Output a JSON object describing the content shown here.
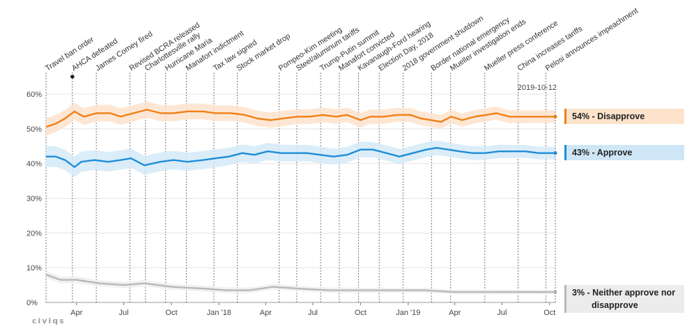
{
  "chart_data": {
    "type": "line",
    "y_unit": "%",
    "ylim": [
      0,
      60
    ],
    "y_ticks": [
      "0%",
      "10%",
      "20%",
      "30%",
      "40%",
      "50%",
      "60%"
    ],
    "x_range": [
      "2017-02-01",
      "2019-10-12"
    ],
    "x_ticks": [
      {
        "date": "2017-04-01",
        "label": "Apr"
      },
      {
        "date": "2017-07-01",
        "label": "Jul"
      },
      {
        "date": "2017-10-01",
        "label": "Oct"
      },
      {
        "date": "2018-01-01",
        "label": "Jan '18"
      },
      {
        "date": "2018-04-01",
        "label": "Apr"
      },
      {
        "date": "2018-07-01",
        "label": "Jul"
      },
      {
        "date": "2018-10-01",
        "label": "Oct"
      },
      {
        "date": "2019-01-01",
        "label": "Jan '19"
      },
      {
        "date": "2019-04-01",
        "label": "Apr"
      },
      {
        "date": "2019-07-01",
        "label": "Jul"
      },
      {
        "date": "2019-10-01",
        "label": "Oct"
      }
    ],
    "current_date_label": "2019-10-12",
    "events": [
      {
        "date": "2017-01-27",
        "label": "Travel ban order"
      },
      {
        "date": "2017-03-24",
        "label": "AHCA defeated"
      },
      {
        "date": "2017-05-09",
        "label": "James Comey fired"
      },
      {
        "date": "2017-07-13",
        "label": "Revised BCRA released"
      },
      {
        "date": "2017-08-12",
        "label": "Charlottesville rally"
      },
      {
        "date": "2017-09-20",
        "label": "Hurricane Maria"
      },
      {
        "date": "2017-10-30",
        "label": "Manafort indictment"
      },
      {
        "date": "2017-12-22",
        "label": "Tax law signed"
      },
      {
        "date": "2018-02-05",
        "label": "Stock market drop"
      },
      {
        "date": "2018-04-27",
        "label": "Pompeo-Kim meeting"
      },
      {
        "date": "2018-05-31",
        "label": "Steel/aluminum tariffs"
      },
      {
        "date": "2018-07-16",
        "label": "Trump-Putin summit"
      },
      {
        "date": "2018-08-21",
        "label": "Manafort convicted"
      },
      {
        "date": "2018-09-27",
        "label": "Kavanaugh-Ford hearing"
      },
      {
        "date": "2018-11-06",
        "label": "Election Day, 2018"
      },
      {
        "date": "2018-12-22",
        "label": "2018 government shutdown"
      },
      {
        "date": "2019-02-15",
        "label": "Border national emergency"
      },
      {
        "date": "2019-03-24",
        "label": "Mueller investigation ends"
      },
      {
        "date": "2019-05-29",
        "label": "Mueller press conference"
      },
      {
        "date": "2019-08-01",
        "label": "China increases tariffs"
      },
      {
        "date": "2019-09-24",
        "label": "Pelosi announces impeachment"
      }
    ],
    "series": [
      {
        "name": "Disapprove",
        "color": "#f07f16",
        "band_color": "#fde3cc",
        "band_halfwidth": [
          2.5,
          1.8
        ],
        "points": [
          [
            "2017-02-01",
            50.5
          ],
          [
            "2017-02-20",
            51.5
          ],
          [
            "2017-03-10",
            53
          ],
          [
            "2017-03-28",
            55
          ],
          [
            "2017-04-15",
            53.5
          ],
          [
            "2017-05-10",
            54.5
          ],
          [
            "2017-06-05",
            54.5
          ],
          [
            "2017-06-25",
            53.5
          ],
          [
            "2017-07-20",
            54.5
          ],
          [
            "2017-08-15",
            55.5
          ],
          [
            "2017-09-10",
            54.5
          ],
          [
            "2017-10-05",
            54.5
          ],
          [
            "2017-11-01",
            55
          ],
          [
            "2017-12-01",
            55
          ],
          [
            "2017-12-25",
            54.5
          ],
          [
            "2018-01-25",
            54.5
          ],
          [
            "2018-02-20",
            54
          ],
          [
            "2018-03-15",
            53
          ],
          [
            "2018-04-10",
            52.5
          ],
          [
            "2018-05-05",
            53
          ],
          [
            "2018-06-01",
            53.5
          ],
          [
            "2018-06-25",
            53.5
          ],
          [
            "2018-07-20",
            54
          ],
          [
            "2018-08-15",
            53.5
          ],
          [
            "2018-09-05",
            54
          ],
          [
            "2018-10-01",
            52.5
          ],
          [
            "2018-10-20",
            53.5
          ],
          [
            "2018-11-15",
            53.5
          ],
          [
            "2018-12-10",
            54
          ],
          [
            "2019-01-05",
            54
          ],
          [
            "2019-01-25",
            53
          ],
          [
            "2019-02-15",
            52.5
          ],
          [
            "2019-03-05",
            52
          ],
          [
            "2019-03-25",
            53.5
          ],
          [
            "2019-04-15",
            52.5
          ],
          [
            "2019-05-10",
            53.5
          ],
          [
            "2019-06-01",
            54
          ],
          [
            "2019-06-20",
            54.5
          ],
          [
            "2019-07-15",
            53.5
          ],
          [
            "2019-08-10",
            53.5
          ],
          [
            "2019-09-05",
            53.5
          ],
          [
            "2019-09-25",
            53.5
          ],
          [
            "2019-10-12",
            53.5
          ]
        ],
        "end_label": "54% - Disapprove"
      },
      {
        "name": "Approve",
        "color": "#1f8dd6",
        "band_color": "#d3eaf8",
        "band_halfwidth": [
          3.0,
          1.8
        ],
        "points": [
          [
            "2017-02-01",
            42
          ],
          [
            "2017-02-20",
            42
          ],
          [
            "2017-03-10",
            41
          ],
          [
            "2017-03-28",
            39
          ],
          [
            "2017-04-10",
            40.5
          ],
          [
            "2017-05-05",
            41
          ],
          [
            "2017-06-01",
            40.5
          ],
          [
            "2017-06-25",
            41
          ],
          [
            "2017-07-15",
            41.5
          ],
          [
            "2017-08-10",
            39.5
          ],
          [
            "2017-09-10",
            40.5
          ],
          [
            "2017-10-05",
            41
          ],
          [
            "2017-11-01",
            40.5
          ],
          [
            "2017-12-01",
            41
          ],
          [
            "2017-12-25",
            41.5
          ],
          [
            "2018-01-20",
            42
          ],
          [
            "2018-02-15",
            43
          ],
          [
            "2018-03-10",
            42.5
          ],
          [
            "2018-04-05",
            43.5
          ],
          [
            "2018-05-01",
            43
          ],
          [
            "2018-05-25",
            43
          ],
          [
            "2018-06-20",
            43
          ],
          [
            "2018-07-15",
            42.5
          ],
          [
            "2018-08-10",
            42
          ],
          [
            "2018-09-05",
            42.5
          ],
          [
            "2018-10-01",
            44
          ],
          [
            "2018-10-25",
            44
          ],
          [
            "2018-11-20",
            43
          ],
          [
            "2018-12-15",
            42
          ],
          [
            "2019-01-10",
            43
          ],
          [
            "2019-02-05",
            44
          ],
          [
            "2019-02-25",
            44.5
          ],
          [
            "2019-03-20",
            44
          ],
          [
            "2019-04-10",
            43.5
          ],
          [
            "2019-05-05",
            43
          ],
          [
            "2019-05-30",
            43
          ],
          [
            "2019-06-25",
            43.5
          ],
          [
            "2019-07-20",
            43.5
          ],
          [
            "2019-08-15",
            43.5
          ],
          [
            "2019-09-10",
            43
          ],
          [
            "2019-10-12",
            43
          ]
        ],
        "end_label": "43% - Approve"
      },
      {
        "name": "Neither approve nor disapprove",
        "color": "#b8b8b8",
        "band_color": "#eeeeee",
        "band_halfwidth": [
          1.0,
          0.6
        ],
        "points": [
          [
            "2017-02-01",
            8
          ],
          [
            "2017-03-01",
            6.5
          ],
          [
            "2017-04-01",
            6.5
          ],
          [
            "2017-05-15",
            5.5
          ],
          [
            "2017-07-01",
            5
          ],
          [
            "2017-08-10",
            5.5
          ],
          [
            "2017-10-01",
            4.5
          ],
          [
            "2017-12-01",
            4
          ],
          [
            "2018-01-15",
            3.5
          ],
          [
            "2018-03-01",
            3.5
          ],
          [
            "2018-04-15",
            4.5
          ],
          [
            "2018-06-01",
            4
          ],
          [
            "2018-08-01",
            3.5
          ],
          [
            "2018-10-01",
            3.5
          ],
          [
            "2018-12-01",
            3.5
          ],
          [
            "2019-02-01",
            3.5
          ],
          [
            "2019-04-01",
            3
          ],
          [
            "2019-06-01",
            3
          ],
          [
            "2019-08-01",
            3
          ],
          [
            "2019-10-12",
            3
          ]
        ],
        "end_label_line1": "3% - Neither approve nor",
        "end_label_line2": "disapprove"
      }
    ],
    "marker_date": "2017-03-24"
  },
  "brand": "civiqs"
}
